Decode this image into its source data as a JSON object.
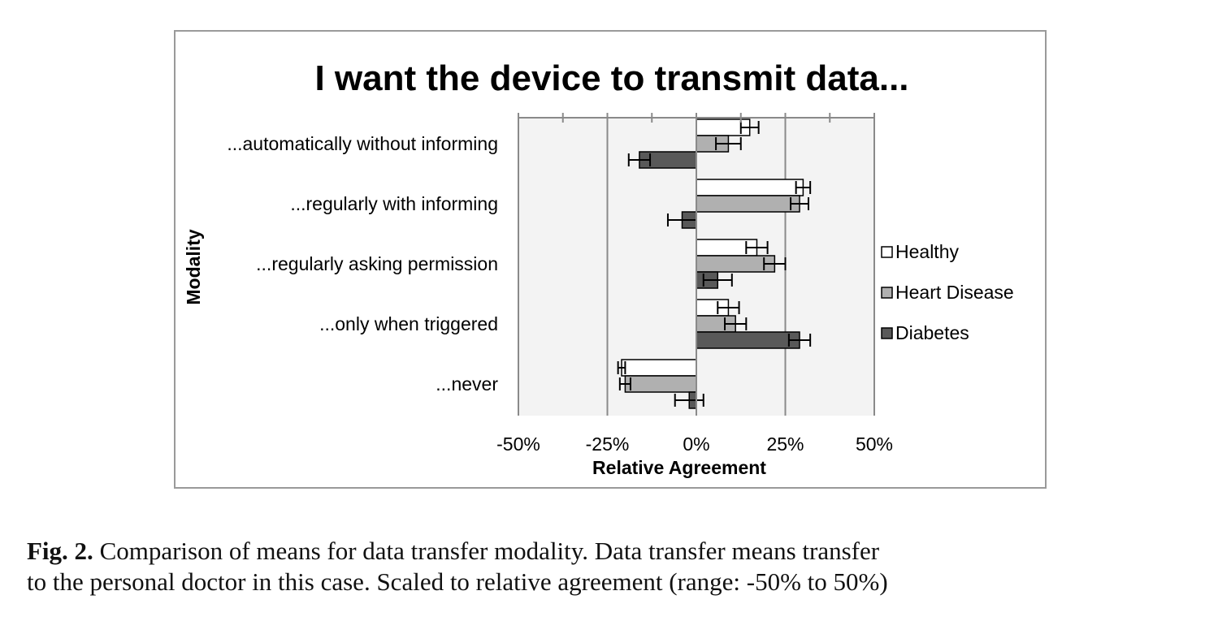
{
  "chart_data": {
    "type": "bar",
    "orientation": "horizontal",
    "title": "I want the device to transmit data...",
    "xlabel": "Relative Agreement",
    "ylabel": "Modality",
    "xlim": [
      -50,
      50
    ],
    "xticks": [
      "-50%",
      "-25%",
      "0%",
      "25%",
      "50%"
    ],
    "xtick_values": [
      -50,
      -25,
      0,
      25,
      50
    ],
    "categories": [
      "...automatically without informing",
      "...regularly with informing",
      "...regularly asking permission",
      "...only when triggered",
      "...never"
    ],
    "series": [
      {
        "name": "Healthy",
        "color": "#ffffff",
        "values": [
          15,
          30,
          17,
          9,
          -21
        ],
        "errors": [
          2.5,
          2,
          3,
          3,
          1
        ]
      },
      {
        "name": "Heart Disease",
        "color": "#b0b0b0",
        "values": [
          9,
          29,
          22,
          11,
          -20
        ],
        "errors": [
          3.5,
          2.5,
          3,
          3,
          1.5
        ]
      },
      {
        "name": "Diabetes",
        "color": "#595959",
        "values": [
          -16,
          -4,
          6,
          29,
          -2
        ],
        "errors": [
          3,
          4,
          4,
          3,
          4
        ]
      }
    ],
    "legend_position": "right",
    "grid": true
  },
  "caption": {
    "label": "Fig. 2.",
    "line1": "Comparison of means for data transfer modality. Data transfer means transfer",
    "line2": "to the personal doctor in this case. Scaled to relative agreement (range: -50% to 50%)"
  }
}
